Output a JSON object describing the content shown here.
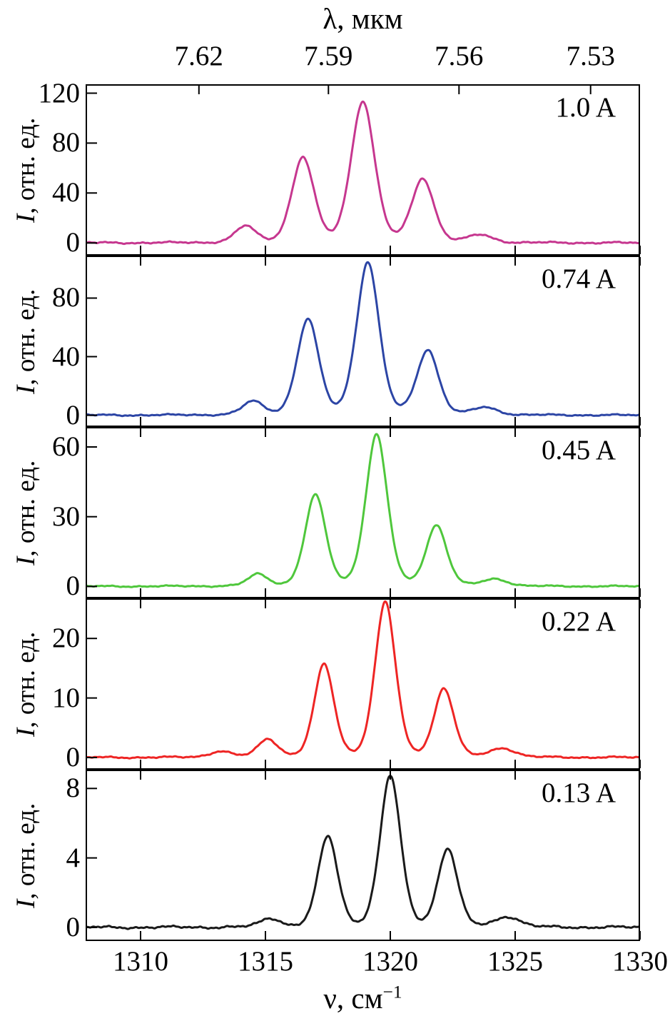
{
  "chart_data": {
    "type": "line",
    "description": "Five stacked emission spectra (intensity vs wavenumber) measured at different drive currents",
    "top_axis": {
      "label": "λ, мкм",
      "tick_labels": [
        "7.62",
        "7.59",
        "7.56",
        "7.53"
      ]
    },
    "x_axis": {
      "label_base": "ν, см",
      "label_sup": "−1",
      "lim": [
        1307.8,
        1330
      ],
      "ticks": [
        1310,
        1315,
        1320,
        1325,
        1330
      ]
    },
    "y_axis": {
      "label_italic": "I",
      "label_rest": ", отн. ед."
    },
    "panels": [
      {
        "label": "1.0 A",
        "color": "#c6378f",
        "ylim": [
          -9,
          126
        ],
        "yticks": [
          0,
          40,
          80,
          120
        ],
        "noise": 0.9,
        "peaks": [
          {
            "x": 1314.2,
            "h": 13,
            "w": 0.42
          },
          {
            "x": 1316.5,
            "h": 68,
            "w": 0.45
          },
          {
            "x": 1318.9,
            "h": 113,
            "w": 0.48
          },
          {
            "x": 1321.3,
            "h": 51,
            "w": 0.45
          },
          {
            "x": 1323.6,
            "h": 6,
            "w": 0.5
          }
        ]
      },
      {
        "label": "0.74 A",
        "color": "#2c45a5",
        "ylim": [
          -7,
          108
        ],
        "yticks": [
          0,
          40,
          80
        ],
        "noise": 0.7,
        "peaks": [
          {
            "x": 1314.5,
            "h": 9,
            "w": 0.42
          },
          {
            "x": 1316.7,
            "h": 65,
            "w": 0.44
          },
          {
            "x": 1319.1,
            "h": 104,
            "w": 0.46
          },
          {
            "x": 1321.5,
            "h": 44,
            "w": 0.44
          },
          {
            "x": 1323.8,
            "h": 5,
            "w": 0.5
          }
        ]
      },
      {
        "label": "0.45 A",
        "color": "#4fc73c",
        "ylim": [
          -4.5,
          68
        ],
        "yticks": [
          0,
          30,
          60
        ],
        "noise": 0.4,
        "peaks": [
          {
            "x": 1314.7,
            "h": 5,
            "w": 0.4
          },
          {
            "x": 1317.0,
            "h": 39,
            "w": 0.42
          },
          {
            "x": 1319.45,
            "h": 65,
            "w": 0.44
          },
          {
            "x": 1321.85,
            "h": 26,
            "w": 0.42
          },
          {
            "x": 1324.2,
            "h": 3,
            "w": 0.5
          }
        ]
      },
      {
        "label": "0.22 A",
        "color": "#ee2524",
        "ylim": [
          -1.8,
          26.5
        ],
        "yticks": [
          0,
          10,
          20
        ],
        "noise": 0.18,
        "peaks": [
          {
            "x": 1313.2,
            "h": 1,
            "w": 0.45
          },
          {
            "x": 1315.1,
            "h": 3,
            "w": 0.4
          },
          {
            "x": 1317.35,
            "h": 15.5,
            "w": 0.4
          },
          {
            "x": 1319.8,
            "h": 26,
            "w": 0.42
          },
          {
            "x": 1322.15,
            "h": 11.5,
            "w": 0.4
          },
          {
            "x": 1324.5,
            "h": 1.5,
            "w": 0.5
          }
        ]
      },
      {
        "label": "0.13 A",
        "color": "#1a1a1a",
        "ylim": [
          -0.7,
          9
        ],
        "yticks": [
          0,
          4,
          8
        ],
        "noise": 0.09,
        "peaks": [
          {
            "x": 1315.2,
            "h": 0.5,
            "w": 0.4
          },
          {
            "x": 1317.5,
            "h": 5.2,
            "w": 0.4
          },
          {
            "x": 1320.0,
            "h": 8.7,
            "w": 0.42
          },
          {
            "x": 1322.3,
            "h": 4.5,
            "w": 0.4
          },
          {
            "x": 1324.7,
            "h": 0.6,
            "w": 0.5
          }
        ]
      }
    ]
  }
}
